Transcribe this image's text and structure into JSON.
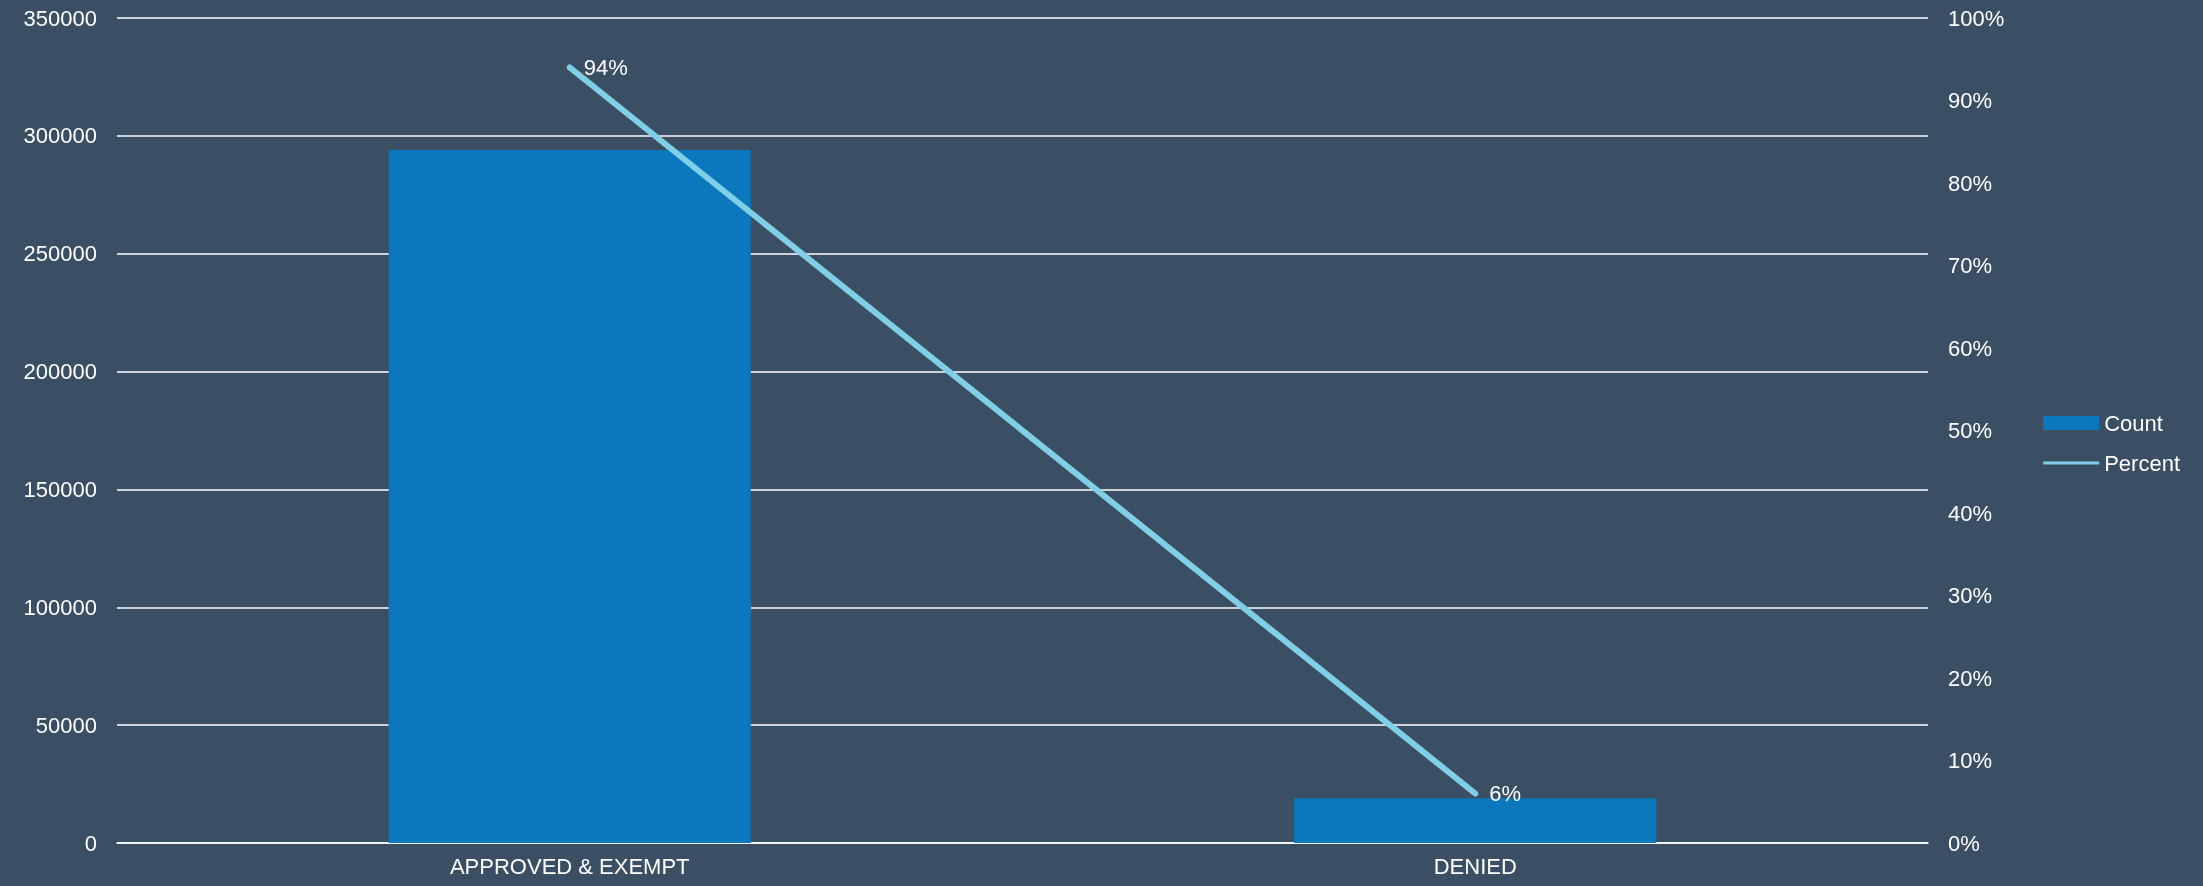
{
  "chart_data": {
    "type": "bar",
    "categories": [
      "APPROVED & EXEMPT",
      "DENIED"
    ],
    "series": [
      {
        "name": "Count",
        "color": "#0b77bd",
        "values": [
          294000,
          19000
        ]
      },
      {
        "name": "Percent",
        "type": "line",
        "axis": "y2",
        "color": "#7fd0e6",
        "values": [
          94,
          6
        ],
        "value_labels": [
          "94%",
          "6%"
        ],
        "marker": "none"
      }
    ],
    "ylim": [
      0,
      350000
    ],
    "yticks": [
      0,
      50000,
      100000,
      150000,
      200000,
      250000,
      300000,
      350000
    ],
    "y2lim": [
      0,
      100
    ],
    "y2ticks": [
      {
        "value": 0,
        "label": "0%"
      },
      {
        "value": 10,
        "label": "10%"
      },
      {
        "value": 20,
        "label": "20%"
      },
      {
        "value": 30,
        "label": "30%"
      },
      {
        "value": 40,
        "label": "40%"
      },
      {
        "value": 50,
        "label": "50%"
      },
      {
        "value": 60,
        "label": "60%"
      },
      {
        "value": 70,
        "label": "70%"
      },
      {
        "value": 80,
        "label": "80%"
      },
      {
        "value": 90,
        "label": "90%"
      },
      {
        "value": 100,
        "label": "100%"
      }
    ],
    "grid": "y",
    "legend": "right"
  }
}
